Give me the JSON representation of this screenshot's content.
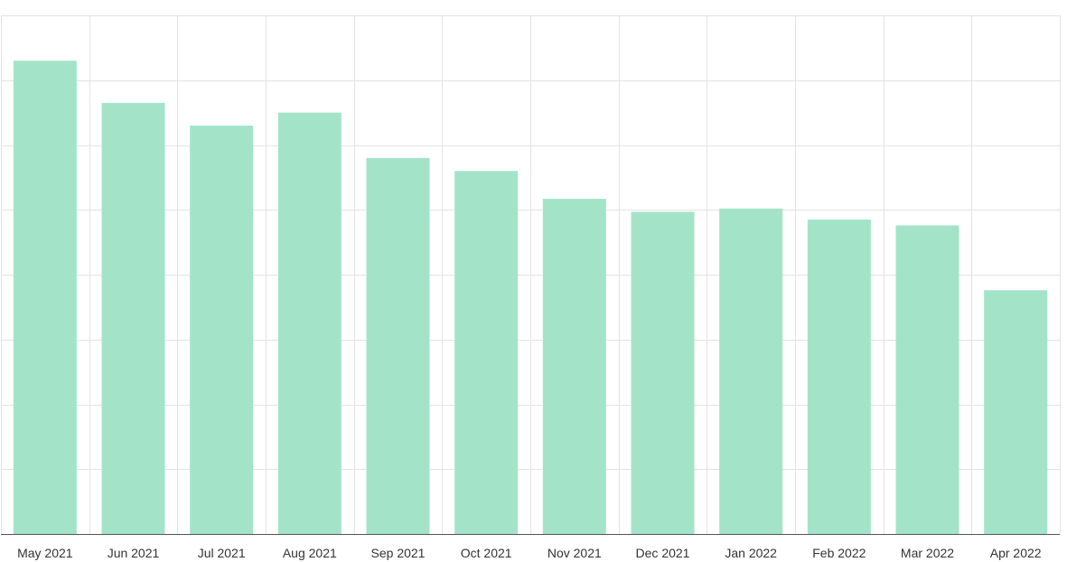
{
  "chart_data": {
    "type": "bar",
    "title": "",
    "xlabel": "",
    "ylabel": "",
    "categories": [
      "May 2021",
      "Jun 2021",
      "Jul 2021",
      "Aug 2021",
      "Sep 2021",
      "Oct 2021",
      "Nov 2021",
      "Dec 2021",
      "Jan 2022",
      "Feb 2022",
      "Mar 2022",
      "Apr 2022"
    ],
    "values": [
      7.3,
      6.65,
      6.3,
      6.5,
      5.8,
      5.6,
      5.17,
      4.97,
      5.02,
      4.85,
      4.76,
      3.76
    ],
    "ylim": [
      0,
      8
    ],
    "y_gridline_step": 1,
    "grid": true,
    "y_tick_labels_visible": false,
    "legend": "none",
    "bar_color": "#a3e4c9",
    "grid_color": "#e3e3e3",
    "axis_color": "#555555"
  }
}
